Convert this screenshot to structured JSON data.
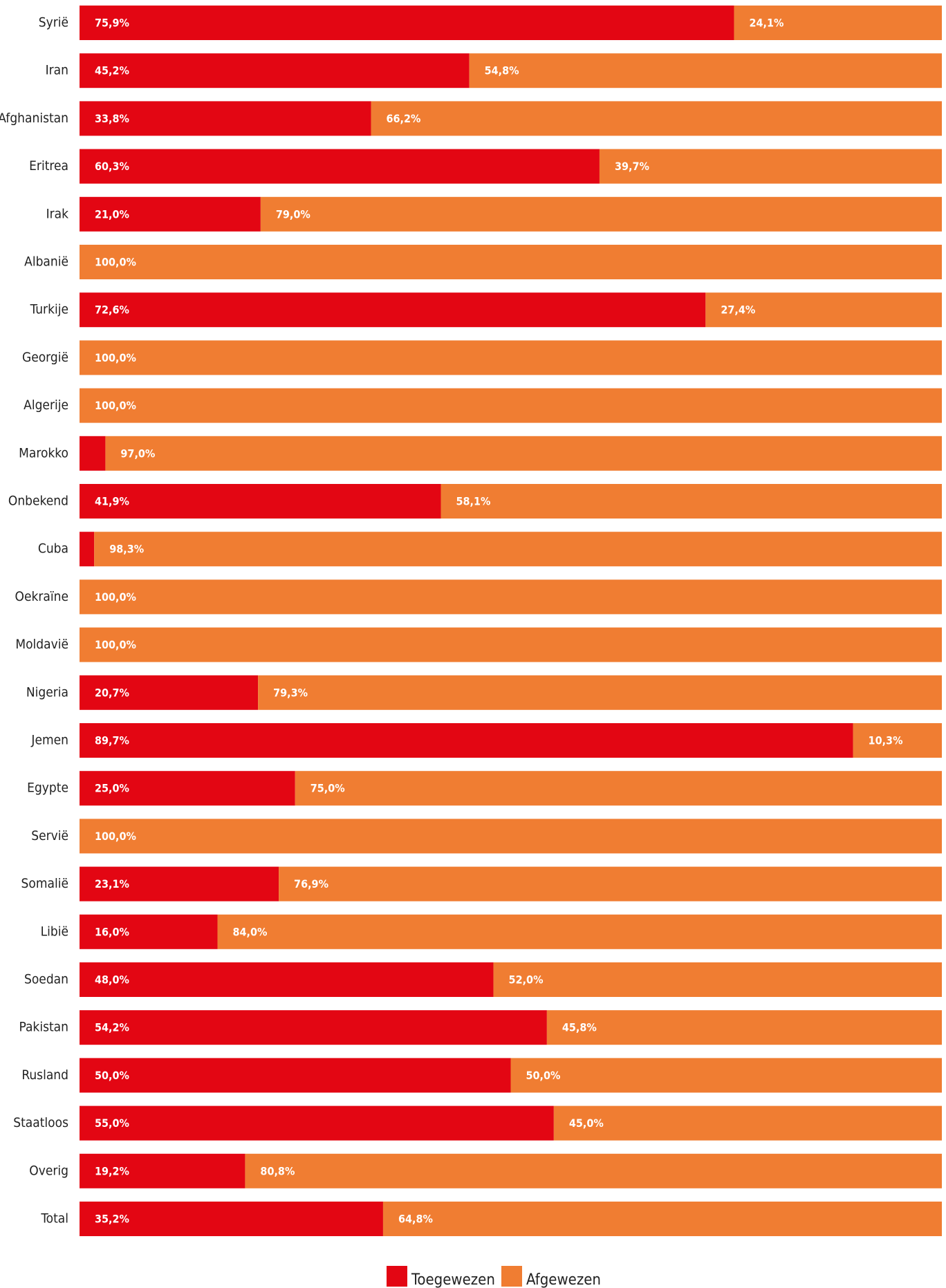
{
  "chart_data": {
    "type": "bar",
    "orientation": "horizontal",
    "stacked": true,
    "percent": true,
    "categories": [
      "Syrië",
      "Iran",
      "Afghanistan",
      "Eritrea",
      "Irak",
      "Albanië",
      "Turkije",
      "Georgië",
      "Algerije",
      "Marokko",
      "Onbekend",
      "Cuba",
      "Oekraïne",
      "Moldavië",
      "Nigeria",
      "Jemen",
      "Egypte",
      "Servië",
      "Somalië",
      "Libië",
      "Soedan",
      "Pakistan",
      "Rusland",
      "Staatloos",
      "Overig",
      "Total"
    ],
    "series": [
      {
        "name": "Toegewezen",
        "color": "#e30613",
        "values": [
          75.9,
          45.2,
          33.8,
          60.3,
          21.0,
          0.0,
          72.6,
          0.0,
          0.0,
          3.0,
          41.9,
          1.7,
          0.0,
          0.0,
          20.7,
          89.7,
          25.0,
          0.0,
          23.1,
          16.0,
          48.0,
          54.2,
          50.0,
          55.0,
          19.2,
          35.2
        ],
        "labels": [
          "75,9%",
          "45,2%",
          "33,8%",
          "60,3%",
          "21,0%",
          "",
          "72,6%",
          "",
          "",
          "",
          "41,9%",
          "",
          "",
          "",
          "20,7%",
          "89,7%",
          "25,0%",
          "",
          "23,1%",
          "16,0%",
          "48,0%",
          "54,2%",
          "50,0%",
          "55,0%",
          "19,2%",
          "35,2%"
        ]
      },
      {
        "name": "Afgewezen",
        "color": "#f07d32",
        "values": [
          24.1,
          54.8,
          66.2,
          39.7,
          79.0,
          100.0,
          27.4,
          100.0,
          100.0,
          97.0,
          58.1,
          98.3,
          100.0,
          100.0,
          79.3,
          10.3,
          75.0,
          100.0,
          76.9,
          84.0,
          52.0,
          45.8,
          50.0,
          45.0,
          80.8,
          64.8
        ],
        "labels": [
          "24,1%",
          "54,8%",
          "66,2%",
          "39,7%",
          "79,0%",
          "100,0%",
          "27,4%",
          "100,0%",
          "100,0%",
          "97,0%",
          "58,1%",
          "98,3%",
          "100,0%",
          "100,0%",
          "79,3%",
          "10,3%",
          "75,0%",
          "100,0%",
          "76,9%",
          "84,0%",
          "52,0%",
          "45,8%",
          "50,0%",
          "45,0%",
          "80,8%",
          "64,8%"
        ]
      }
    ],
    "xlim": [
      0,
      100
    ],
    "legend": {
      "position": "bottom-center",
      "items": [
        "Toegewezen",
        "Afgewezen"
      ]
    }
  }
}
